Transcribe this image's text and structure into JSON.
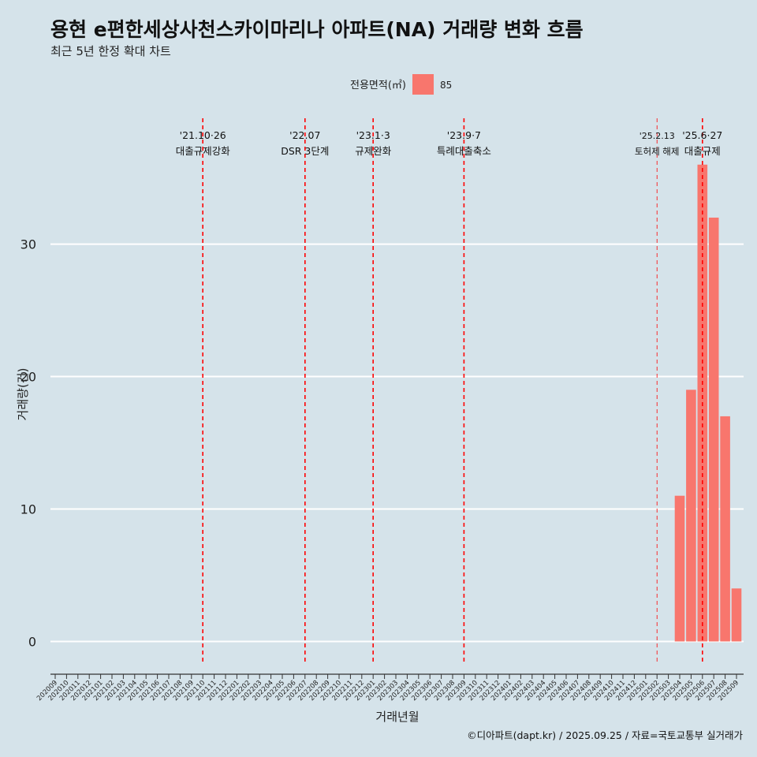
{
  "title": "용현 e편한세상사천스카이마리나 아파트(NA) 거래량 변화 흐름",
  "subtitle": "최근 5년 한정 확대 차트",
  "caption": "©디아파트(dapt.kr) / 2025.09.25 / 자료=국토교통부 실거래가",
  "colors": {
    "bar": "#f8766d",
    "event_line": "#ff0000",
    "background": "#d5e3ea",
    "grid": "#ffffff"
  },
  "chart_data": {
    "type": "bar",
    "xlabel": "거래년월",
    "ylabel": "거래량(건)",
    "legend": {
      "title": "전용면적(㎡)",
      "entries": [
        "85"
      ],
      "placement": "top"
    },
    "ylim": [
      -1.7,
      39.5
    ],
    "yticks": [
      0,
      10,
      20,
      30
    ],
    "categories": [
      "202009",
      "202010",
      "202011",
      "202012",
      "202101",
      "202102",
      "202103",
      "202104",
      "202105",
      "202106",
      "202107",
      "202108",
      "202109",
      "202110",
      "202111",
      "202112",
      "202201",
      "202202",
      "202203",
      "202204",
      "202205",
      "202206",
      "202207",
      "202208",
      "202209",
      "202210",
      "202211",
      "202212",
      "202301",
      "202302",
      "202303",
      "202304",
      "202305",
      "202306",
      "202307",
      "202308",
      "202309",
      "202310",
      "202311",
      "202312",
      "202401",
      "202402",
      "202403",
      "202404",
      "202405",
      "202406",
      "202407",
      "202408",
      "202409",
      "202410",
      "202411",
      "202412",
      "202501",
      "202502",
      "202503",
      "202504",
      "202505",
      "202506",
      "202507",
      "202508",
      "202509"
    ],
    "series": [
      {
        "name": "85",
        "values": [
          0,
          0,
          0,
          0,
          0,
          0,
          0,
          0,
          0,
          0,
          0,
          0,
          0,
          0,
          0,
          0,
          0,
          0,
          0,
          0,
          0,
          0,
          0,
          0,
          0,
          0,
          0,
          0,
          0,
          0,
          0,
          0,
          0,
          0,
          0,
          0,
          0,
          0,
          0,
          0,
          0,
          0,
          0,
          0,
          0,
          0,
          0,
          0,
          0,
          0,
          0,
          0,
          0,
          0,
          0,
          11,
          19,
          36,
          32,
          17,
          4
        ]
      }
    ],
    "events": [
      {
        "pos": 13,
        "date": "'21.10·26",
        "label": "대출규제강화",
        "style": "bold"
      },
      {
        "pos": 22,
        "date": "'22.07",
        "label": "DSR 3단계",
        "style": "bold"
      },
      {
        "pos": 28,
        "date": "'23.1·3",
        "label": "규제완화",
        "style": "bold"
      },
      {
        "pos": 36,
        "date": "'23.9·7",
        "label": "특례대출축소",
        "style": "bold"
      },
      {
        "pos": 53,
        "date": "'25.2.13",
        "label": "토허제 해제",
        "style": "thin"
      },
      {
        "pos": 57,
        "date": "'25.6·27",
        "label": "대출규제",
        "style": "bold"
      }
    ]
  }
}
